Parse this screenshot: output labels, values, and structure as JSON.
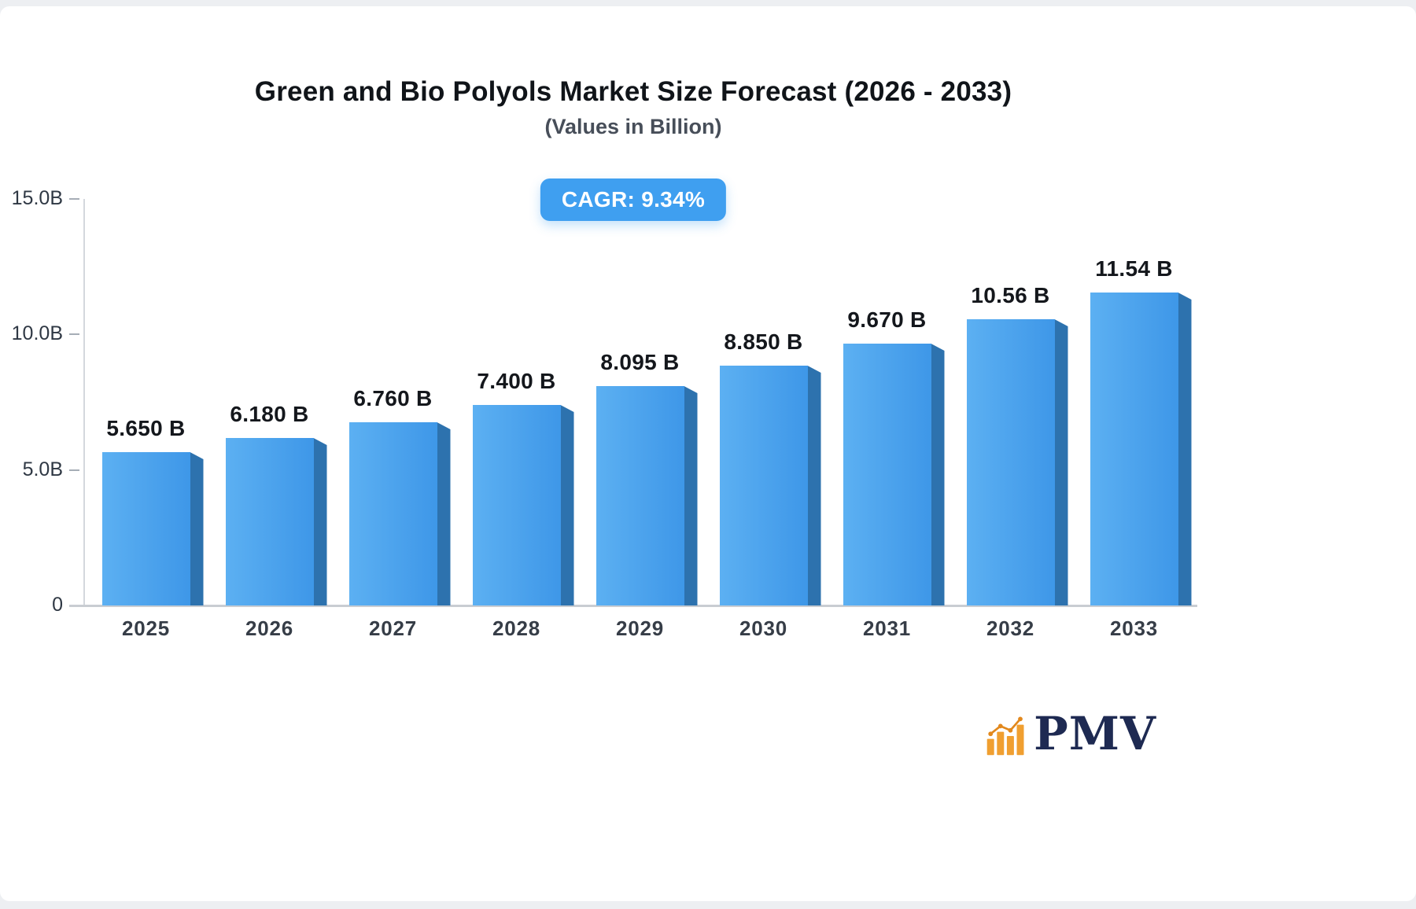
{
  "header": {
    "title": "Green and Bio Polyols Market Size Forecast (2026 - 2033)",
    "subtitle": "(Values in Billion)"
  },
  "badge": {
    "label": "CAGR: 9.34%",
    "bg": "#3f9ff0",
    "text_color": "#ffffff"
  },
  "chart_data": {
    "type": "bar",
    "title": "Green and Bio Polyols Market Size Forecast (2026 - 2033)",
    "subtitle": "(Values in Billion)",
    "categories": [
      "2025",
      "2026",
      "2027",
      "2028",
      "2029",
      "2030",
      "2031",
      "2032",
      "2033"
    ],
    "values": [
      5.65,
      6.18,
      6.76,
      7.4,
      8.095,
      8.85,
      9.67,
      10.56,
      11.54
    ],
    "value_labels": [
      "5.650 B",
      "6.180 B",
      "6.760 B",
      "7.400 B",
      "8.095 B",
      "8.850 B",
      "9.670 B",
      "10.56 B",
      "11.54 B"
    ],
    "xlabel": "",
    "ylabel": "",
    "ylim": [
      0,
      15
    ],
    "yticks": [
      {
        "value": 15,
        "label": "15.0B"
      },
      {
        "value": 10,
        "label": "10.0B"
      },
      {
        "value": 5,
        "label": "5.0B"
      },
      {
        "value": 0,
        "label": "0"
      }
    ],
    "grid": false,
    "legend": "none",
    "bar_gradient": [
      "#5cb0f2",
      "#3e97e8"
    ],
    "bar_side_color": "#2d72ae",
    "cagr": "9.34%"
  },
  "logo": {
    "text": "PMV",
    "icon": "bar-chart-icon",
    "icon_color": "#f09f30",
    "icon_accent": "#e2881c",
    "text_color": "#1e2a52"
  }
}
